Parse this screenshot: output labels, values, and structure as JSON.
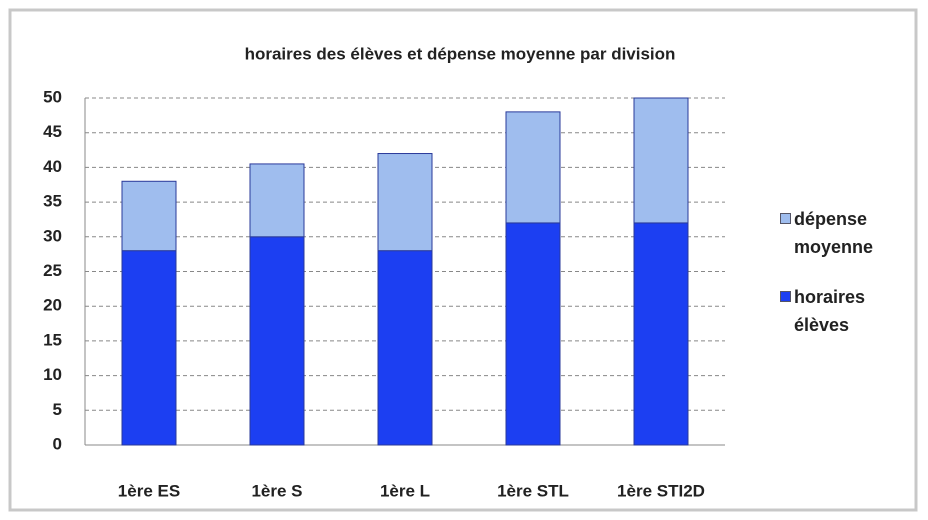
{
  "chart_data": {
    "type": "stacked_bar",
    "title": "horaires des élèves et dépense moyenne par division",
    "categories": [
      "1ère ES",
      "1ère S",
      "1ère L",
      "1ère STL",
      "1ère STI2D"
    ],
    "series": [
      {
        "name": "horaires élèves",
        "color": "#1c3ff2",
        "values": [
          28,
          30,
          28,
          32,
          32
        ]
      },
      {
        "name": "dépense moyenne",
        "color": "#9fbdee",
        "values": [
          10,
          10.5,
          14,
          16,
          18
        ]
      }
    ],
    "ylim": [
      0,
      50
    ],
    "yticks": [
      0,
      5,
      10,
      15,
      20,
      25,
      30,
      35,
      40,
      45,
      50
    ],
    "grid": true
  }
}
